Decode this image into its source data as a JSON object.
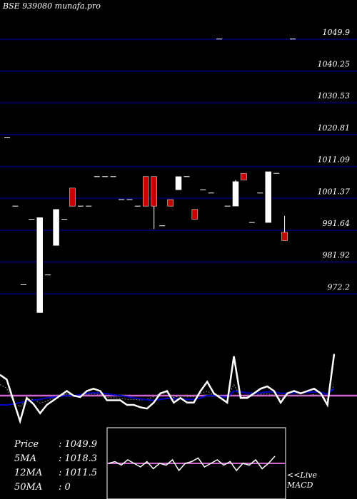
{
  "header": {
    "title": "BSE 939080  munafa.pro"
  },
  "chart_data": {
    "type": "candlestick",
    "price_axis": {
      "ylim": [
        964.0,
        1058.0
      ],
      "gridlines": [
        1049.9,
        1040.25,
        1030.53,
        1020.81,
        1011.09,
        1001.37,
        991.64,
        981.92,
        972.2
      ],
      "tick_labels": [
        "1049.9",
        "1040.25",
        "1030.53",
        "1020.81",
        "1011.09",
        "1001.37",
        "991.64",
        "981.92",
        "972.2"
      ]
    },
    "candles": [
      {
        "o": 1020.0,
        "h": 1020.0,
        "l": 1020.0,
        "c": 1020.0
      },
      {
        "o": 999.0,
        "h": 999.0,
        "l": 999.0,
        "c": 999.0
      },
      {
        "o": 975.0,
        "h": 975.0,
        "l": 975.0,
        "c": 975.0
      },
      {
        "o": 995.0,
        "h": 995.0,
        "l": 995.0,
        "c": 995.0
      },
      {
        "o": 966.5,
        "h": 995.5,
        "l": 966.5,
        "c": 995.5
      },
      {
        "o": 978.0,
        "h": 978.0,
        "l": 978.0,
        "c": 978.0
      },
      {
        "o": 987.0,
        "h": 998.0,
        "l": 987.0,
        "c": 998.0
      },
      {
        "o": 995.0,
        "h": 995.0,
        "l": 995.0,
        "c": 995.0
      },
      {
        "o": 1004.5,
        "h": 1004.5,
        "l": 999.0,
        "c": 999.0
      },
      {
        "o": 999.0,
        "h": 999.0,
        "l": 999.0,
        "c": 999.0
      },
      {
        "o": 999.0,
        "h": 999.0,
        "l": 999.0,
        "c": 999.0
      },
      {
        "o": 1008.0,
        "h": 1008.0,
        "l": 1008.0,
        "c": 1008.0
      },
      {
        "o": 1008.0,
        "h": 1008.0,
        "l": 1008.0,
        "c": 1008.0
      },
      {
        "o": 1008.0,
        "h": 1008.0,
        "l": 1008.0,
        "c": 1008.0
      },
      {
        "o": 1001.0,
        "h": 1001.0,
        "l": 1001.0,
        "c": 1001.0
      },
      {
        "o": 1001.0,
        "h": 1001.0,
        "l": 1001.0,
        "c": 1001.0
      },
      {
        "o": 999.0,
        "h": 999.0,
        "l": 999.0,
        "c": 999.0
      },
      {
        "o": 1008.0,
        "h": 1008.0,
        "l": 999.0,
        "c": 999.0
      },
      {
        "o": 1008.0,
        "h": 1008.0,
        "l": 992.0,
        "c": 999.0
      },
      {
        "o": 993.0,
        "h": 993.0,
        "l": 993.0,
        "c": 993.0
      },
      {
        "o": 1001.0,
        "h": 1001.0,
        "l": 999.0,
        "c": 999.0
      },
      {
        "o": 1004.0,
        "h": 1008.0,
        "l": 1004.0,
        "c": 1008.0
      },
      {
        "o": 1008.0,
        "h": 1008.0,
        "l": 1008.0,
        "c": 1008.0
      },
      {
        "o": 998.0,
        "h": 998.0,
        "l": 995.0,
        "c": 995.0
      },
      {
        "o": 1004.0,
        "h": 1004.0,
        "l": 1004.0,
        "c": 1004.0
      },
      {
        "o": 1003.0,
        "h": 1003.0,
        "l": 1003.0,
        "c": 1003.0
      },
      {
        "o": 1050.0,
        "h": 1050.0,
        "l": 1050.0,
        "c": 1050.0
      },
      {
        "o": 999.0,
        "h": 999.0,
        "l": 999.0,
        "c": 999.0
      },
      {
        "o": 999.0,
        "h": 1007.0,
        "l": 999.0,
        "c": 1006.5
      },
      {
        "o": 1009.0,
        "h": 1009.0,
        "l": 1007.0,
        "c": 1007.0
      },
      {
        "o": 994.0,
        "h": 994.0,
        "l": 994.0,
        "c": 994.0
      },
      {
        "o": 1003.0,
        "h": 1003.0,
        "l": 1003.0,
        "c": 1003.0
      },
      {
        "o": 994.0,
        "h": 1009.5,
        "l": 994.0,
        "c": 1009.5
      },
      {
        "o": 1009.0,
        "h": 1009.0,
        "l": 1009.0,
        "c": 1009.0
      },
      {
        "o": 991.0,
        "h": 996.0,
        "l": 988.5,
        "c": 988.5
      },
      {
        "o": 1050.0,
        "h": 1050.0,
        "l": 1050.0,
        "c": 1050.0
      }
    ],
    "candle_colors": {
      "up": "#ffffff",
      "down": "#cc0000"
    },
    "indicator": {
      "name": "MACD",
      "ylim": [
        -1,
        1
      ],
      "macd": [
        0.45,
        0.35,
        -0.1,
        -0.55,
        -0.05,
        -0.18,
        -0.38,
        -0.2,
        -0.1,
        0.0,
        0.1,
        0.0,
        -0.03,
        0.1,
        0.15,
        0.1,
        -0.1,
        -0.1,
        -0.1,
        -0.2,
        -0.2,
        -0.25,
        -0.28,
        -0.15,
        0.05,
        0.1,
        -0.15,
        -0.05,
        -0.15,
        -0.15,
        0.1,
        0.3,
        0.05,
        -0.05,
        -0.15,
        0.85,
        -0.05,
        -0.05,
        0.05,
        0.15,
        0.2,
        0.1,
        -0.15,
        0.05,
        0.1,
        0.05,
        0.1,
        0.15,
        0.05,
        -0.2,
        0.9
      ],
      "signal": [
        -0.2,
        -0.2,
        -0.18,
        -0.15,
        -0.12,
        -0.1,
        -0.08,
        -0.05,
        -0.03,
        -0.02,
        0.0,
        0.0,
        0.02,
        0.05,
        0.06,
        0.06,
        0.04,
        0.02,
        0.0,
        -0.02,
        -0.05,
        -0.07,
        -0.09,
        -0.1,
        -0.08,
        -0.06,
        -0.07,
        -0.07,
        -0.08,
        -0.08,
        -0.05,
        0.0,
        0.0,
        -0.02,
        -0.03,
        0.1,
        0.08,
        0.06,
        0.05,
        0.06,
        0.08,
        0.08,
        0.05,
        0.05,
        0.06,
        0.06,
        0.07,
        0.08,
        0.07,
        0.03,
        0.15
      ],
      "hist": [
        0.3,
        0.2,
        -0.15,
        -0.3,
        -0.1,
        -0.1,
        -0.2,
        -0.15,
        -0.05,
        0.0,
        0.05,
        0.0,
        -0.02,
        0.03,
        0.05,
        0.03,
        -0.05,
        -0.06,
        -0.08,
        -0.1,
        -0.1,
        -0.12,
        -0.1,
        -0.03,
        0.06,
        0.08,
        -0.05,
        0.0,
        -0.03,
        -0.03,
        0.06,
        0.12,
        0.03,
        0.0,
        -0.05,
        0.3,
        -0.04,
        -0.03,
        0.0,
        0.04,
        0.05,
        0.02,
        -0.08,
        0.0,
        0.02,
        0.0,
        0.01,
        0.03,
        0.0,
        -0.1,
        0.3
      ],
      "zero_line": 0.0,
      "colors": {
        "macd": "#ffffff",
        "signal": "#0000cc",
        "hist": "#888888",
        "zero": "#cc66cc"
      }
    },
    "inset": {
      "values": [
        0.5,
        0.55,
        0.45,
        0.6,
        0.5,
        0.4,
        0.55,
        0.35,
        0.5,
        0.45,
        0.6,
        0.3,
        0.5,
        0.55,
        0.65,
        0.4,
        0.5,
        0.6,
        0.45,
        0.55,
        0.3,
        0.5,
        0.45,
        0.6,
        0.35,
        0.5,
        0.7
      ],
      "zero_line": 0.5,
      "colors": {
        "line": "#ffffff",
        "zero": "#cc66cc"
      }
    },
    "stats": [
      {
        "label": "Price",
        "value": ": 1049.9"
      },
      {
        "label": "5MA",
        "value": ": 1018.3"
      },
      {
        "label": "12MA",
        "value": ": 1011.5"
      },
      {
        "label": "50MA",
        "value": ": 0"
      }
    ],
    "live_note": [
      "<<Live",
      "MACD"
    ],
    "colors": {
      "grid": "#00005a",
      "background": "#000000",
      "text": "#ffffff"
    }
  }
}
